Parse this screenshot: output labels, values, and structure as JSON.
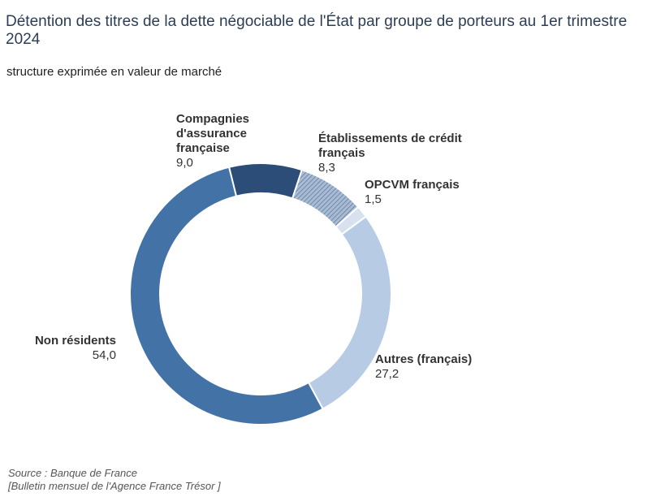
{
  "header": {
    "title": "Détention des titres de la dette négociable de l'État par groupe de porteurs au 1er trimestre 2024",
    "subtitle": "structure exprimée en valeur de marché"
  },
  "footer": {
    "source": "Source : Banque de France",
    "bulletin": "[Bulletin mensuel de l'Agence France Trésor ]"
  },
  "chart_data": {
    "type": "donut",
    "title": "Détention des titres de la dette négociable de l'État par groupe de porteurs au 1er trimestre 2024",
    "subtitle": "structure exprimée en valeur de marché",
    "slices": [
      {
        "name": "Compagnies d'assurance française",
        "label_lines": [
          "Compagnies",
          "d'assurance",
          "française"
        ],
        "value": 9.0,
        "value_label": "9,0",
        "color": "#2b4d77",
        "pattern": false
      },
      {
        "name": "Établissements de crédit français",
        "label_lines": [
          "Établissements de crédit",
          "français"
        ],
        "value": 8.3,
        "value_label": "8,3",
        "color": "#7e98b8",
        "pattern": true
      },
      {
        "name": "OPCVM français",
        "label_lines": [
          "OPCVM français"
        ],
        "value": 1.5,
        "value_label": "1,5",
        "color": "#d7e1ef",
        "pattern": false
      },
      {
        "name": "Autres (français)",
        "label_lines": [
          "Autres (français)"
        ],
        "value": 27.2,
        "value_label": "27,2",
        "color": "#b8cbe5",
        "pattern": false
      },
      {
        "name": "Non résidents",
        "label_lines": [
          "Non résidents"
        ],
        "value": 54.0,
        "value_label": "54,0",
        "color": "#4272a6",
        "pattern": false
      }
    ],
    "start_angle_deg": -14,
    "direction": "clockwise"
  }
}
